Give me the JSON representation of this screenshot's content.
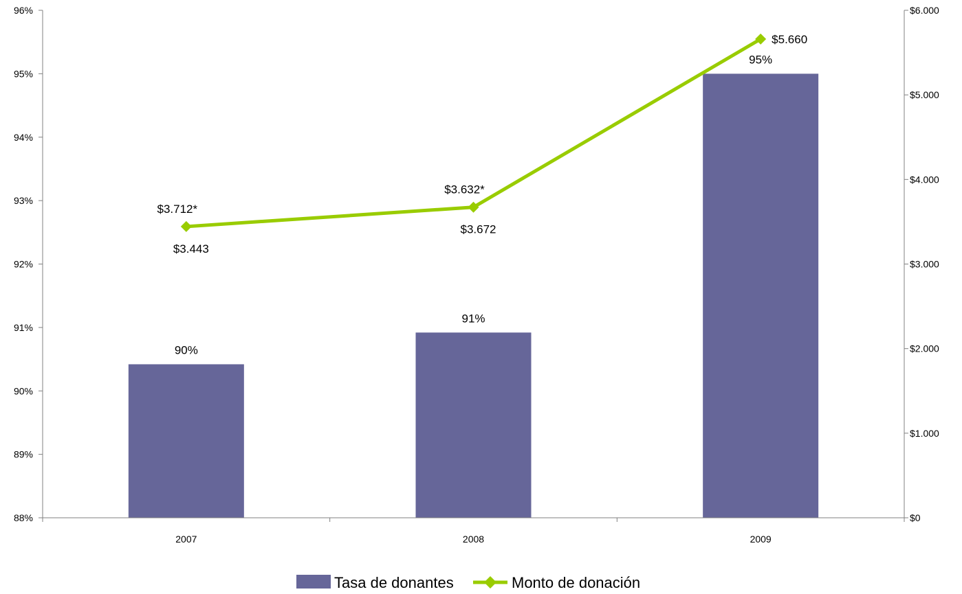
{
  "chart_data": {
    "type": "bar",
    "categories": [
      "2007",
      "2008",
      "2009"
    ],
    "colors": {
      "bar": "#666699",
      "line": "#99CC00",
      "axis": "#808080"
    },
    "y_left": {
      "ylim": [
        0.88,
        0.96
      ],
      "ticks": [
        0.88,
        0.89,
        0.9,
        0.91,
        0.92,
        0.93,
        0.94,
        0.95,
        0.96
      ],
      "tick_labels": [
        "88%",
        "89%",
        "90%",
        "91%",
        "92%",
        "93%",
        "94%",
        "95%",
        "96%"
      ]
    },
    "y_right": {
      "ylim": [
        0,
        6000
      ],
      "ticks": [
        0,
        1000,
        2000,
        3000,
        4000,
        5000,
        6000
      ],
      "tick_labels": [
        "$0",
        "$1.000",
        "$2.000",
        "$3.000",
        "$4.000",
        "$5.000",
        "$6.000"
      ]
    },
    "series": [
      {
        "name": "Tasa de donantes",
        "type": "bar",
        "axis": "left",
        "values": [
          0.9042,
          0.9092,
          0.95
        ],
        "data_labels": [
          "90%",
          "91%",
          "95%"
        ]
      },
      {
        "name": "Monto de donación",
        "type": "line",
        "axis": "right",
        "marker": "diamond",
        "values": [
          3443,
          3672,
          5660
        ],
        "data_labels": [
          "$3.443",
          "$3.672",
          "$5.660"
        ],
        "secondary_labels": [
          "$3.712*",
          "$3.632*",
          ""
        ]
      }
    ],
    "legend": {
      "position": "bottom",
      "entries": [
        "Tasa de donantes",
        "Monto de donación"
      ]
    },
    "grid": false
  }
}
